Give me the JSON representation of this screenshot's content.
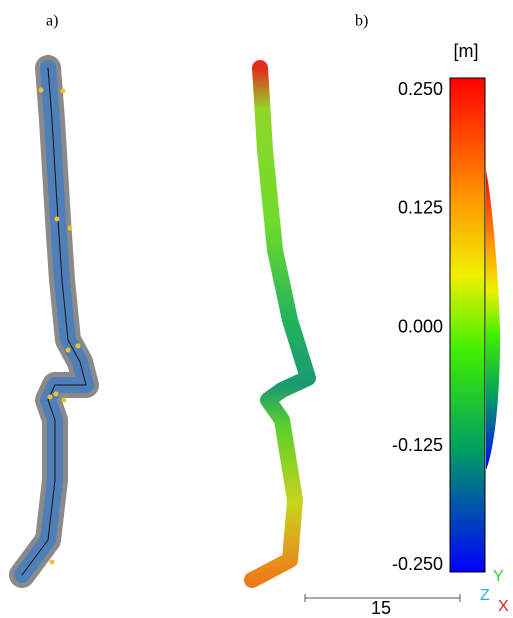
{
  "panels": {
    "a": {
      "label": "a)"
    },
    "b": {
      "label": "b)"
    }
  },
  "colorbar": {
    "unit": "[m]",
    "ticks": [
      "0.250",
      "0.125",
      "0.000",
      "-0.125",
      "-0.250"
    ]
  },
  "scale_bar": {
    "label": "15"
  },
  "axes": {
    "y": "Y",
    "z": "Z",
    "x": "X"
  }
}
